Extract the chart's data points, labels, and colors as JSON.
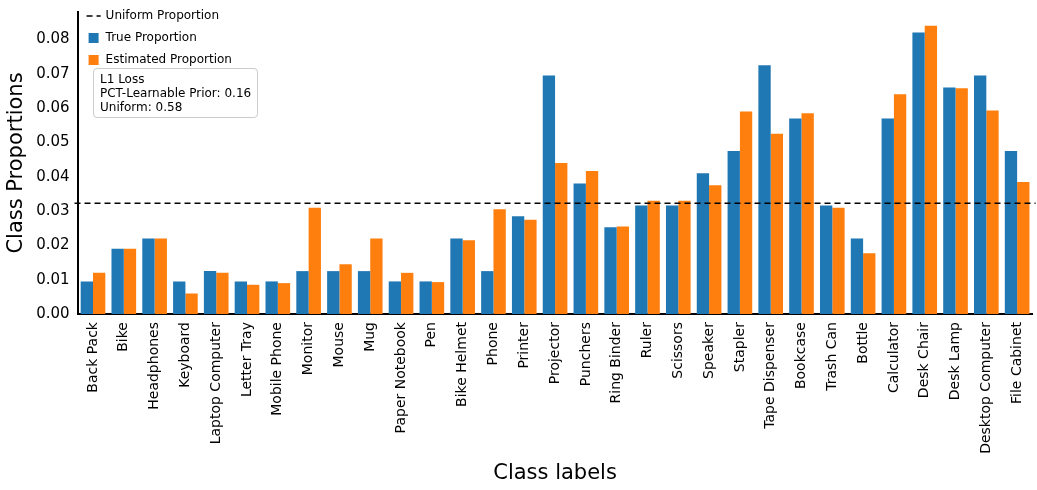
{
  "chart_data": {
    "type": "bar",
    "xlabel": "Class labels",
    "ylabel": "Class Proportions",
    "categories": [
      "Back Pack",
      "Bike",
      "Headphones",
      "Keyboard",
      "Laptop Computer",
      "Letter Tray",
      "Mobile Phone",
      "Monitor",
      "Mouse",
      "Mug",
      "Paper Notebook",
      "Pen",
      "Bike Helmet",
      "Phone",
      "Printer",
      "Projector",
      "Punchers",
      "Ring Binder",
      "Ruler",
      "Scissors",
      "Speaker",
      "Stapler",
      "Tape Dispenser",
      "Bookcase",
      "Trash Can",
      "Bottle",
      "Calculator",
      "Desk Chair",
      "Desk Lamp",
      "Desktop Computer",
      "File Cabinet"
    ],
    "series": [
      {
        "name": "True Proportion",
        "color": "#1f77b4",
        "values": [
          0.0095,
          0.019,
          0.022,
          0.0095,
          0.0125,
          0.0095,
          0.0095,
          0.0125,
          0.0125,
          0.0125,
          0.0095,
          0.0095,
          0.022,
          0.0125,
          0.0285,
          0.0695,
          0.038,
          0.0253,
          0.0316,
          0.0316,
          0.041,
          0.0475,
          0.0725,
          0.057,
          0.0316,
          0.022,
          0.057,
          0.082,
          0.066,
          0.0695,
          0.0475
        ]
      },
      {
        "name": "Estimated Proportion",
        "color": "#ff7f0e",
        "values": [
          0.012,
          0.019,
          0.022,
          0.006,
          0.012,
          0.0085,
          0.009,
          0.031,
          0.0145,
          0.022,
          0.012,
          0.0093,
          0.0215,
          0.0305,
          0.0275,
          0.044,
          0.0417,
          0.0255,
          0.033,
          0.033,
          0.0375,
          0.059,
          0.0525,
          0.0585,
          0.031,
          0.0177,
          0.064,
          0.084,
          0.0658,
          0.0593,
          0.0385
        ]
      }
    ],
    "ref_lines": [
      {
        "axis": "y",
        "value": 0.0323,
        "label": "Uniform Proportion",
        "color": "#000000",
        "line_style": "dashed"
      }
    ],
    "annotations": [
      "L1 Loss\nPCT-Learnable Prior: 0.16\nUniform: 0.58"
    ],
    "ylim": [
      0,
      0.088
    ],
    "yticks": [
      {
        "value": 0,
        "label": "0.00"
      },
      {
        "value": 0.01,
        "label": "0.01"
      },
      {
        "value": 0.02,
        "label": "0.02"
      },
      {
        "value": 0.03,
        "label": "0.03"
      },
      {
        "value": 0.04,
        "label": "0.04"
      },
      {
        "value": 0.05,
        "label": "0.05"
      },
      {
        "value": 0.06,
        "label": "0.06"
      },
      {
        "value": 0.07,
        "label": "0.07"
      },
      {
        "value": 0.08,
        "label": "0.08"
      }
    ],
    "grid": false,
    "legend": "top left"
  }
}
